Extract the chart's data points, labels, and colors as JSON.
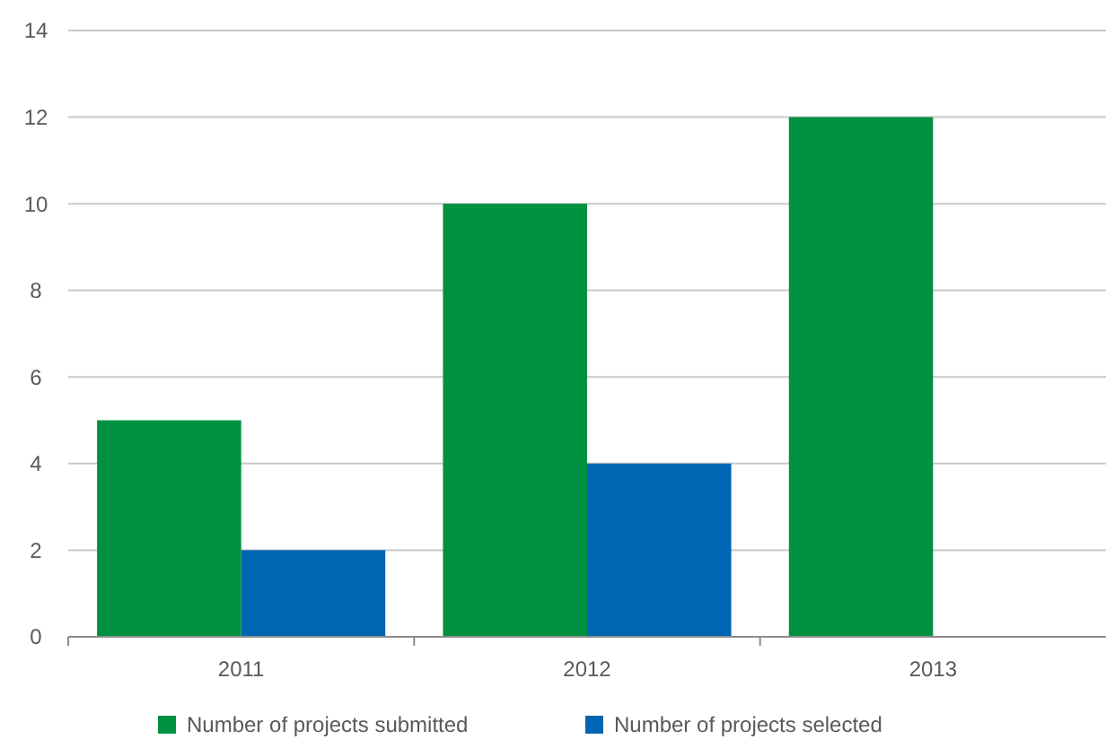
{
  "chart_data": {
    "type": "bar",
    "categories": [
      "2011",
      "2012",
      "2013"
    ],
    "series": [
      {
        "name": "Number of projects submitted",
        "color": "#009140",
        "values": [
          5,
          10,
          12
        ]
      },
      {
        "name": "Number of projects selected",
        "color": "#0066b3",
        "values": [
          2,
          4,
          0
        ]
      }
    ],
    "ylim": [
      0,
      14
    ],
    "yticks": [
      0,
      2,
      4,
      6,
      8,
      10,
      12,
      14
    ],
    "grid": "y",
    "legend": "bottom"
  }
}
